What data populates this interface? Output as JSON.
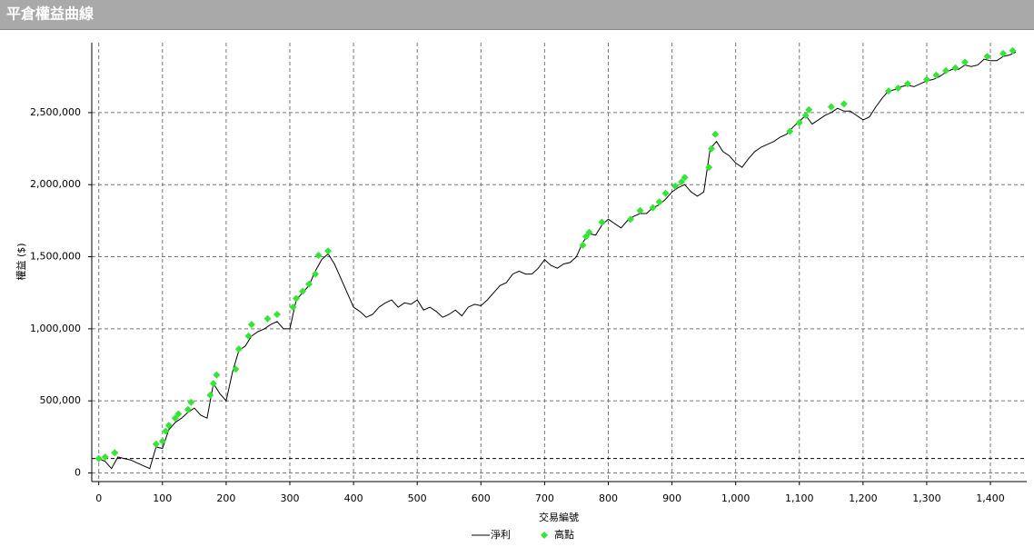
{
  "header": {
    "title": "平倉權益曲線"
  },
  "chart_data": {
    "type": "line",
    "xlabel": "交易編號",
    "ylabel": "權益 ($)",
    "xlim": [
      -11,
      1457
    ],
    "ylim": [
      -60000,
      2985000
    ],
    "xticks": [
      0,
      100,
      200,
      300,
      400,
      500,
      600,
      700,
      800,
      900,
      {
        "value": 1000,
        "label": "1,000"
      },
      {
        "value": 1100,
        "label": "1,100"
      },
      {
        "value": 1200,
        "label": "1,200"
      },
      {
        "value": 1300,
        "label": "1,300"
      },
      {
        "value": 1400,
        "label": "1,400"
      }
    ],
    "yticks": [
      0,
      {
        "value": 500000,
        "label": "500,000"
      },
      {
        "value": 1000000,
        "label": "1,000,000"
      },
      {
        "value": 1500000,
        "label": "1,500,000"
      },
      {
        "value": 2000000,
        "label": "2,000,000"
      },
      {
        "value": 2500000,
        "label": "2,500,000"
      }
    ],
    "grid": true,
    "hline": 100000,
    "legend": "bottom",
    "series": [
      {
        "name": "淨利",
        "type": "line",
        "color": "#000000",
        "x": [
          0,
          10,
          20,
          30,
          40,
          50,
          60,
          70,
          80,
          90,
          100,
          110,
          120,
          130,
          140,
          150,
          160,
          170,
          180,
          190,
          200,
          210,
          220,
          230,
          240,
          250,
          260,
          270,
          280,
          290,
          300,
          310,
          320,
          330,
          340,
          350,
          360,
          370,
          380,
          390,
          400,
          410,
          420,
          430,
          440,
          450,
          460,
          470,
          480,
          490,
          500,
          510,
          520,
          530,
          540,
          550,
          560,
          570,
          580,
          590,
          600,
          610,
          620,
          630,
          640,
          650,
          660,
          670,
          680,
          690,
          700,
          710,
          720,
          730,
          740,
          750,
          760,
          770,
          780,
          790,
          800,
          810,
          820,
          830,
          840,
          850,
          860,
          870,
          880,
          890,
          900,
          910,
          920,
          930,
          940,
          950,
          960,
          970,
          980,
          990,
          1000,
          1010,
          1020,
          1030,
          1040,
          1050,
          1060,
          1070,
          1080,
          1090,
          1100,
          1110,
          1120,
          1130,
          1140,
          1150,
          1160,
          1170,
          1180,
          1190,
          1200,
          1210,
          1220,
          1230,
          1240,
          1250,
          1260,
          1270,
          1280,
          1290,
          1300,
          1310,
          1320,
          1330,
          1340,
          1350,
          1360,
          1370,
          1380,
          1390,
          1400,
          1410,
          1420,
          1430,
          1440
        ],
        "values": [
          100000,
          80000,
          30000,
          110000,
          100000,
          90000,
          70000,
          50000,
          30000,
          180000,
          170000,
          300000,
          350000,
          380000,
          420000,
          450000,
          400000,
          380000,
          620000,
          550000,
          500000,
          700000,
          850000,
          880000,
          950000,
          980000,
          1000000,
          1030000,
          1050000,
          1000000,
          1000000,
          1200000,
          1250000,
          1300000,
          1400000,
          1480000,
          1520000,
          1450000,
          1350000,
          1250000,
          1150000,
          1120000,
          1080000,
          1100000,
          1150000,
          1180000,
          1200000,
          1150000,
          1180000,
          1170000,
          1200000,
          1130000,
          1150000,
          1120000,
          1080000,
          1100000,
          1130000,
          1090000,
          1150000,
          1170000,
          1160000,
          1200000,
          1250000,
          1300000,
          1320000,
          1380000,
          1400000,
          1380000,
          1380000,
          1420000,
          1480000,
          1440000,
          1420000,
          1450000,
          1460000,
          1500000,
          1600000,
          1660000,
          1650000,
          1720000,
          1760000,
          1730000,
          1700000,
          1750000,
          1780000,
          1800000,
          1800000,
          1840000,
          1860000,
          1900000,
          1950000,
          1980000,
          2000000,
          1950000,
          1920000,
          1950000,
          2250000,
          2300000,
          2230000,
          2200000,
          2150000,
          2120000,
          2180000,
          2230000,
          2260000,
          2280000,
          2300000,
          2330000,
          2350000,
          2400000,
          2440000,
          2480000,
          2420000,
          2450000,
          2480000,
          2500000,
          2530000,
          2510000,
          2510000,
          2480000,
          2450000,
          2470000,
          2540000,
          2600000,
          2650000,
          2660000,
          2680000,
          2690000,
          2680000,
          2700000,
          2720000,
          2730000,
          2750000,
          2780000,
          2800000,
          2800000,
          2830000,
          2820000,
          2830000,
          2870000,
          2860000,
          2860000,
          2890000,
          2900000,
          2920000
        ]
      },
      {
        "name": "高點",
        "type": "scatter",
        "color": "#33e633",
        "x": [
          0,
          10,
          25,
          90,
          100,
          105,
          110,
          120,
          125,
          140,
          145,
          175,
          180,
          185,
          215,
          220,
          235,
          240,
          265,
          280,
          305,
          310,
          320,
          330,
          340,
          345,
          360,
          760,
          765,
          770,
          790,
          835,
          850,
          870,
          880,
          890,
          905,
          915,
          920,
          958,
          962,
          968,
          1085,
          1100,
          1110,
          1115,
          1150,
          1170,
          1240,
          1255,
          1270,
          1300,
          1315,
          1330,
          1345,
          1360,
          1395,
          1420,
          1435
        ],
        "values": [
          100000,
          110000,
          140000,
          200000,
          220000,
          290000,
          330000,
          380000,
          410000,
          440000,
          490000,
          540000,
          620000,
          680000,
          720000,
          860000,
          950000,
          1030000,
          1070000,
          1100000,
          1150000,
          1210000,
          1260000,
          1310000,
          1380000,
          1510000,
          1540000,
          1580000,
          1640000,
          1670000,
          1740000,
          1760000,
          1820000,
          1840000,
          1880000,
          1940000,
          1990000,
          2020000,
          2050000,
          2120000,
          2250000,
          2350000,
          2370000,
          2430000,
          2480000,
          2520000,
          2540000,
          2560000,
          2650000,
          2670000,
          2700000,
          2730000,
          2760000,
          2790000,
          2810000,
          2850000,
          2890000,
          2910000,
          2930000
        ]
      }
    ]
  }
}
